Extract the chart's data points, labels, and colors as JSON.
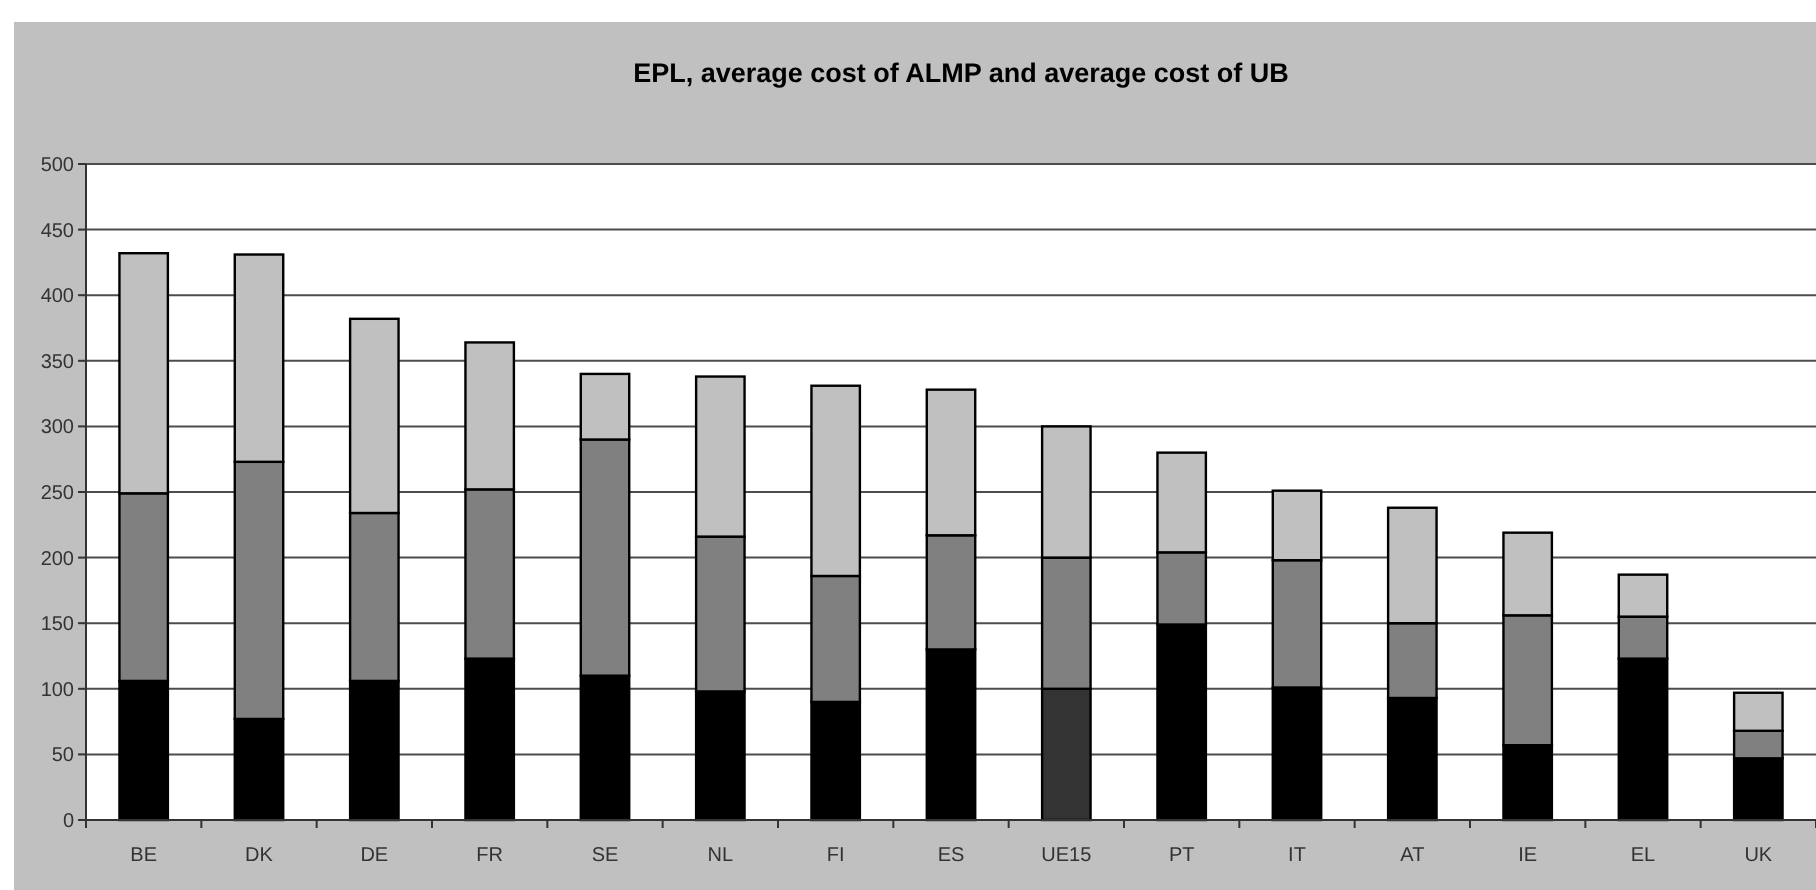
{
  "chart_data": {
    "type": "bar",
    "title": "EPL, average cost of ALMP and average cost of UB",
    "categories": [
      "BE",
      "DK",
      "DE",
      "FR",
      "SE",
      "NL",
      "FI",
      "ES",
      "UE15",
      "PT",
      "IT",
      "AT",
      "IE",
      "EL",
      "UK"
    ],
    "stacked": true,
    "series": [
      {
        "color": "#000000",
        "colors": [
          null,
          null,
          null,
          null,
          null,
          null,
          null,
          null,
          "#333333",
          null,
          null,
          null,
          null,
          null,
          null
        ],
        "values": [
          106,
          77,
          106,
          123,
          110,
          98,
          90,
          130,
          100,
          149,
          101,
          93,
          57,
          123,
          47
        ]
      },
      {
        "color": "#808080",
        "values": [
          143,
          196,
          128,
          129,
          180,
          118,
          96,
          87,
          100,
          55,
          97,
          57,
          99,
          32,
          21
        ]
      },
      {
        "color": "#c0c0c0",
        "values": [
          183,
          158,
          148,
          112,
          50,
          122,
          145,
          111,
          100,
          76,
          53,
          88,
          63,
          32,
          29
        ]
      }
    ],
    "ylim": [
      0,
      500
    ],
    "yticks": [
      0,
      50,
      100,
      150,
      200,
      250,
      300,
      350,
      400,
      450,
      500
    ],
    "grid": "y"
  }
}
